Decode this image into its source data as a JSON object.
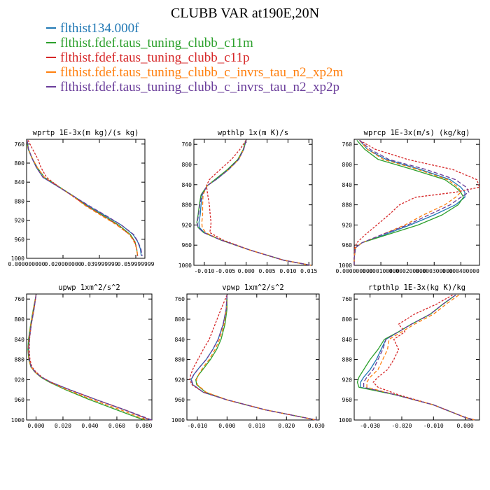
{
  "title": "CLUBB VAR at190E,20N",
  "series_names": [
    "flthist134.000f",
    "flthist.fdef.taus_tuning_clubb_c11m",
    "flthist.fdef.taus_tuning_clubb_c11p",
    "flthist.fdef.taus_tuning_clubb_c_invrs_tau_n2_xp2m",
    "flthist.fdef.taus_tuning_clubb_c_invrs_tau_n2_xp2p"
  ],
  "series_colors": [
    "#1f77b4",
    "#2ca02c",
    "#d62728",
    "#ff7f0e",
    "#6a3d9a"
  ],
  "series_dash": [
    "",
    "",
    "3,2",
    "5,3",
    "6,3"
  ],
  "chart_data": [
    {
      "type": "line",
      "title": "wprtp  1E-3x(m kg)/(s kg)",
      "xlim": [
        0.0,
        0.065
      ],
      "ylim": [
        1000,
        750
      ],
      "xticks": [
        0.0,
        0.02,
        0.04,
        0.06
      ],
      "xticklabels": [
        "0.000000000",
        "0.020000000",
        "0.039999999",
        "0.059999999"
      ],
      "yticks": [
        760,
        800,
        840,
        880,
        920,
        960,
        1000
      ],
      "y": [
        752,
        770,
        790,
        810,
        830,
        850,
        870,
        890,
        910,
        930,
        950,
        965,
        980,
        995
      ],
      "series": [
        {
          "name": "flthist134.000f",
          "values": [
            0.0003,
            0.001,
            0.003,
            0.0055,
            0.009,
            0.0175,
            0.026,
            0.034,
            0.043,
            0.052,
            0.0585,
            0.061,
            0.0625,
            0.063
          ]
        },
        {
          "name": "flthist.fdef.taus_tuning_clubb_c11m",
          "values": [
            0.0002,
            0.0008,
            0.003,
            0.006,
            0.0098,
            0.018,
            0.026,
            0.033,
            0.042,
            0.0505,
            0.057,
            0.0595,
            0.0605,
            0.061
          ]
        },
        {
          "name": "flthist.fdef.taus_tuning_clubb_c11p",
          "values": [
            0.0008,
            0.0032,
            0.006,
            0.008,
            0.011,
            0.0178,
            0.0255,
            0.033,
            0.0415,
            0.05,
            0.0565,
            0.0595,
            0.0605,
            0.061
          ]
        },
        {
          "name": "flthist.fdef.taus_tuning_clubb_c_invrs_tau_n2_xp2m",
          "values": [
            0.0002,
            0.0009,
            0.0032,
            0.006,
            0.0098,
            0.0178,
            0.0255,
            0.0325,
            0.041,
            0.0495,
            0.0565,
            0.059,
            0.0605,
            0.061
          ]
        },
        {
          "name": "flthist.fdef.taus_tuning_clubb_c_invrs_tau_n2_xp2p",
          "values": [
            0.0003,
            0.001,
            0.003,
            0.0055,
            0.009,
            0.0175,
            0.026,
            0.0345,
            0.0435,
            0.052,
            0.0588,
            0.0612,
            0.0628,
            0.0635
          ]
        }
      ]
    },
    {
      "type": "line",
      "title": "wpthlp  1x(m K)/s",
      "xlim": [
        -0.0125,
        0.0158
      ],
      "ylim": [
        1000,
        750
      ],
      "xticks": [
        -0.01,
        -0.005,
        0.0,
        0.005,
        0.01,
        0.015
      ],
      "xticklabels": [
        "-0.010",
        "-0.005",
        "0.000",
        "0.005",
        "0.010",
        "0.015"
      ],
      "yticks": [
        760,
        800,
        840,
        880,
        920,
        960,
        1000
      ],
      "y": [
        752,
        770,
        790,
        810,
        830,
        842,
        860,
        880,
        900,
        915,
        925,
        935,
        950,
        970,
        990,
        1000
      ],
      "series": [
        {
          "name": "flthist134.000f",
          "values": [
            0.0,
            -0.0006,
            -0.0018,
            -0.0042,
            -0.0072,
            -0.0093,
            -0.0105,
            -0.0108,
            -0.011,
            -0.0113,
            -0.0112,
            -0.01,
            -0.006,
            0.001,
            0.009,
            0.0155
          ]
        },
        {
          "name": "flthist.fdef.taus_tuning_clubb_c11m",
          "values": [
            -0.0001,
            -0.0007,
            -0.002,
            -0.0045,
            -0.0075,
            -0.0093,
            -0.0108,
            -0.0112,
            -0.0115,
            -0.0118,
            -0.0115,
            -0.0102,
            -0.006,
            0.001,
            0.009,
            0.0155
          ]
        },
        {
          "name": "flthist.fdef.taus_tuning_clubb_c11p",
          "values": [
            0.0,
            -0.0015,
            -0.0035,
            -0.0062,
            -0.0088,
            -0.0095,
            -0.0092,
            -0.0088,
            -0.0086,
            -0.0084,
            -0.0085,
            -0.0087,
            -0.0055,
            0.001,
            0.009,
            0.0155
          ]
        },
        {
          "name": "flthist.fdef.taus_tuning_clubb_c_invrs_tau_n2_xp2m",
          "values": [
            0.0,
            -0.0006,
            -0.0018,
            -0.0042,
            -0.0072,
            -0.0093,
            -0.0103,
            -0.0104,
            -0.0104,
            -0.0106,
            -0.0105,
            -0.0097,
            -0.006,
            0.001,
            0.009,
            0.0155
          ]
        },
        {
          "name": "flthist.fdef.taus_tuning_clubb_c_invrs_tau_n2_xp2p",
          "values": [
            0.0,
            -0.0006,
            -0.0018,
            -0.0042,
            -0.0072,
            -0.0093,
            -0.0106,
            -0.0111,
            -0.0114,
            -0.0117,
            -0.0115,
            -0.0102,
            -0.006,
            0.001,
            0.009,
            0.0155
          ]
        }
      ]
    },
    {
      "type": "line",
      "title": "wprcp  1E-3x(m/s) (kg/kg)",
      "xlim": [
        0.0,
        0.00047
      ],
      "ylim": [
        1000,
        750
      ],
      "xticks": [
        0.0,
        0.0001,
        0.0002,
        0.0003,
        0.0004
      ],
      "xticklabels": [
        "0.000000000",
        "0.000100000",
        "0.000200000",
        "0.000300000",
        "0.000400000"
      ],
      "yticks": [
        760,
        800,
        840,
        880,
        920,
        960,
        1000
      ],
      "y": [
        752,
        770,
        790,
        810,
        830,
        845,
        855,
        865,
        880,
        900,
        920,
        940,
        955,
        965,
        985,
        1000
      ],
      "series": [
        {
          "name": "flthist134.000f",
          "values": [
            2e-05,
            5e-05,
            0.00012,
            0.00025,
            0.00036,
            0.0004,
            0.000415,
            0.000415,
            0.00038,
            0.0003,
            0.00021,
            0.00011,
            3e-05,
            5e-06,
            0.0,
            0.0
          ]
        },
        {
          "name": "flthist.fdef.taus_tuning_clubb_c11m",
          "values": [
            1e-05,
            4e-05,
            9e-05,
            0.00022,
            0.00034,
            0.00038,
            0.0004,
            0.00041,
            0.00039,
            0.00033,
            0.00024,
            0.00012,
            3e-05,
            5e-06,
            0.0,
            0.0
          ]
        },
        {
          "name": "flthist.fdef.taus_tuning_clubb_c11p",
          "values": [
            2e-05,
            8e-05,
            0.0002,
            0.00037,
            0.00046,
            0.00047,
            0.00038,
            0.00023,
            0.00017,
            0.00013,
            8.5e-05,
            4e-05,
            1e-05,
            2e-06,
            0.0,
            0.0
          ]
        },
        {
          "name": "flthist.fdef.taus_tuning_clubb_c_invrs_tau_n2_xp2m",
          "values": [
            2e-05,
            5e-05,
            0.00011,
            0.00024,
            0.00035,
            0.00039,
            0.0004,
            0.00038,
            0.00034,
            0.00026,
            0.00019,
            0.0001,
            3e-05,
            5e-06,
            0.0,
            0.0
          ]
        },
        {
          "name": "flthist.fdef.taus_tuning_clubb_c_invrs_tau_n2_xp2p",
          "values": [
            2e-05,
            6e-05,
            0.00013,
            0.00027,
            0.00038,
            0.00042,
            0.00043,
            0.0004,
            0.00036,
            0.00028,
            0.0002,
            0.0001,
            3e-05,
            5e-06,
            0.0,
            0.0
          ]
        }
      ]
    },
    {
      "type": "line",
      "title": "upwp  1xm^2/s^2",
      "xlim": [
        -0.007,
        0.086
      ],
      "ylim": [
        1000,
        750
      ],
      "xticks": [
        0.0,
        0.02,
        0.04,
        0.06,
        0.08
      ],
      "xticklabels": [
        "0.000",
        "0.020",
        "0.040",
        "0.060",
        "0.080"
      ],
      "yticks": [
        760,
        800,
        840,
        880,
        920,
        960,
        1000
      ],
      "y": [
        752,
        780,
        810,
        840,
        860,
        880,
        895,
        905,
        915,
        925,
        940,
        960,
        980,
        995,
        1000
      ],
      "series": [
        {
          "name": "flthist134.000f",
          "values": [
            0.0,
            -0.0015,
            -0.0035,
            -0.005,
            -0.0055,
            -0.005,
            -0.0035,
            -0.0005,
            0.004,
            0.011,
            0.025,
            0.045,
            0.066,
            0.08,
            0.085
          ]
        },
        {
          "name": "flthist.fdef.taus_tuning_clubb_c11m",
          "values": [
            0.0,
            -0.002,
            -0.004,
            -0.0056,
            -0.006,
            -0.0054,
            -0.0038,
            -0.0008,
            0.0035,
            0.01,
            0.022,
            0.04,
            0.06,
            0.075,
            0.08
          ]
        },
        {
          "name": "flthist.fdef.taus_tuning_clubb_c11p",
          "values": [
            0.0,
            -0.0015,
            -0.0035,
            -0.0048,
            -0.005,
            -0.0045,
            -0.003,
            0.0,
            0.0045,
            0.011,
            0.025,
            0.045,
            0.066,
            0.08,
            0.085
          ]
        },
        {
          "name": "flthist.fdef.taus_tuning_clubb_c_invrs_tau_n2_xp2m",
          "values": [
            0.0,
            -0.0018,
            -0.0038,
            -0.0053,
            -0.0058,
            -0.0052,
            -0.0036,
            -0.0006,
            0.0038,
            0.0105,
            0.023,
            0.042,
            0.063,
            0.077,
            0.082
          ]
        },
        {
          "name": "flthist.fdef.taus_tuning_clubb_c_invrs_tau_n2_xp2p",
          "values": [
            0.0,
            -0.0015,
            -0.0035,
            -0.005,
            -0.0055,
            -0.005,
            -0.0035,
            -0.0005,
            0.004,
            0.011,
            0.025,
            0.045,
            0.066,
            0.081,
            0.086
          ]
        }
      ]
    },
    {
      "type": "line",
      "title": "vpwp  1xm^2/s^2",
      "xlim": [
        -0.0135,
        0.031
      ],
      "ylim": [
        1000,
        750
      ],
      "xticks": [
        -0.01,
        0.0,
        0.01,
        0.02,
        0.03
      ],
      "xticklabels": [
        "-0.010",
        "0.000",
        "0.010",
        "0.020",
        "0.030"
      ],
      "yticks": [
        760,
        800,
        840,
        880,
        920,
        960,
        1000
      ],
      "y": [
        752,
        780,
        810,
        840,
        860,
        880,
        895,
        910,
        920,
        930,
        945,
        960,
        980,
        1000
      ],
      "series": [
        {
          "name": "flthist134.000f",
          "values": [
            0.0,
            -0.0003,
            -0.0013,
            -0.003,
            -0.0048,
            -0.007,
            -0.0092,
            -0.0112,
            -0.0121,
            -0.0115,
            -0.008,
            0.0,
            0.013,
            0.03
          ]
        },
        {
          "name": "flthist.fdef.taus_tuning_clubb_c11m",
          "values": [
            0.0,
            0.0,
            -0.0007,
            -0.002,
            -0.0035,
            -0.0056,
            -0.0075,
            -0.0095,
            -0.0105,
            -0.0102,
            -0.0072,
            0.0,
            0.013,
            0.03
          ]
        },
        {
          "name": "flthist.fdef.taus_tuning_clubb_c11p",
          "values": [
            0.0,
            -0.002,
            -0.004,
            -0.006,
            -0.008,
            -0.0098,
            -0.0112,
            -0.0122,
            -0.0125,
            -0.0118,
            -0.008,
            0.0,
            0.013,
            0.03
          ]
        },
        {
          "name": "flthist.fdef.taus_tuning_clubb_c_invrs_tau_n2_xp2m",
          "values": [
            0.0,
            -0.0002,
            -0.001,
            -0.0025,
            -0.004,
            -0.006,
            -0.008,
            -0.0096,
            -0.0103,
            -0.01,
            -0.007,
            0.0,
            0.013,
            0.03
          ]
        },
        {
          "name": "flthist.fdef.taus_tuning_clubb_c_invrs_tau_n2_xp2p",
          "values": [
            0.0,
            -0.0003,
            -0.0013,
            -0.003,
            -0.0048,
            -0.007,
            -0.0092,
            -0.0112,
            -0.012,
            -0.0114,
            -0.008,
            0.0,
            0.013,
            0.03
          ]
        }
      ]
    },
    {
      "type": "line",
      "title": "rtpthlp  1E-3x(kg K)/kg",
      "xlim": [
        -0.035,
        0.0045
      ],
      "ylim": [
        1000,
        750
      ],
      "xticks": [
        -0.03,
        -0.02,
        -0.01,
        0.0
      ],
      "xticklabels": [
        "-0.030",
        "-0.020",
        "-0.010",
        "0.000"
      ],
      "yticks": [
        760,
        800,
        840,
        880,
        920,
        960,
        1000
      ],
      "y": [
        752,
        770,
        790,
        810,
        825,
        840,
        860,
        880,
        900,
        915,
        925,
        935,
        950,
        970,
        985,
        995,
        1000
      ],
      "series": [
        {
          "name": "flthist134.000f",
          "values": [
            -0.003,
            -0.007,
            -0.011,
            -0.017,
            -0.021,
            -0.025,
            -0.0265,
            -0.028,
            -0.03,
            -0.032,
            -0.033,
            -0.033,
            -0.022,
            -0.01,
            -0.004,
            0.0,
            0.003
          ]
        },
        {
          "name": "flthist.fdef.taus_tuning_clubb_c11m",
          "values": [
            -0.003,
            -0.007,
            -0.011,
            -0.017,
            -0.021,
            -0.0255,
            -0.0275,
            -0.03,
            -0.032,
            -0.0335,
            -0.034,
            -0.0335,
            -0.022,
            -0.01,
            -0.004,
            0.0,
            0.003
          ]
        },
        {
          "name": "flthist.fdef.taus_tuning_clubb_c11p",
          "values": [
            -0.004,
            -0.009,
            -0.016,
            -0.021,
            -0.019,
            -0.0225,
            -0.021,
            -0.0225,
            -0.0245,
            -0.0275,
            -0.029,
            -0.0275,
            -0.021,
            -0.01,
            -0.004,
            0.0,
            0.003
          ]
        },
        {
          "name": "flthist.fdef.taus_tuning_clubb_c_invrs_tau_n2_xp2m",
          "values": [
            -0.002,
            -0.006,
            -0.01,
            -0.016,
            -0.02,
            -0.024,
            -0.0245,
            -0.026,
            -0.0275,
            -0.03,
            -0.031,
            -0.031,
            -0.022,
            -0.01,
            -0.004,
            0.0,
            0.003
          ]
        },
        {
          "name": "flthist.fdef.taus_tuning_clubb_c_invrs_tau_n2_xp2p",
          "values": [
            -0.003,
            -0.007,
            -0.011,
            -0.017,
            -0.021,
            -0.025,
            -0.026,
            -0.0275,
            -0.029,
            -0.031,
            -0.032,
            -0.032,
            -0.022,
            -0.01,
            -0.004,
            0.0,
            0.003
          ]
        }
      ]
    }
  ]
}
